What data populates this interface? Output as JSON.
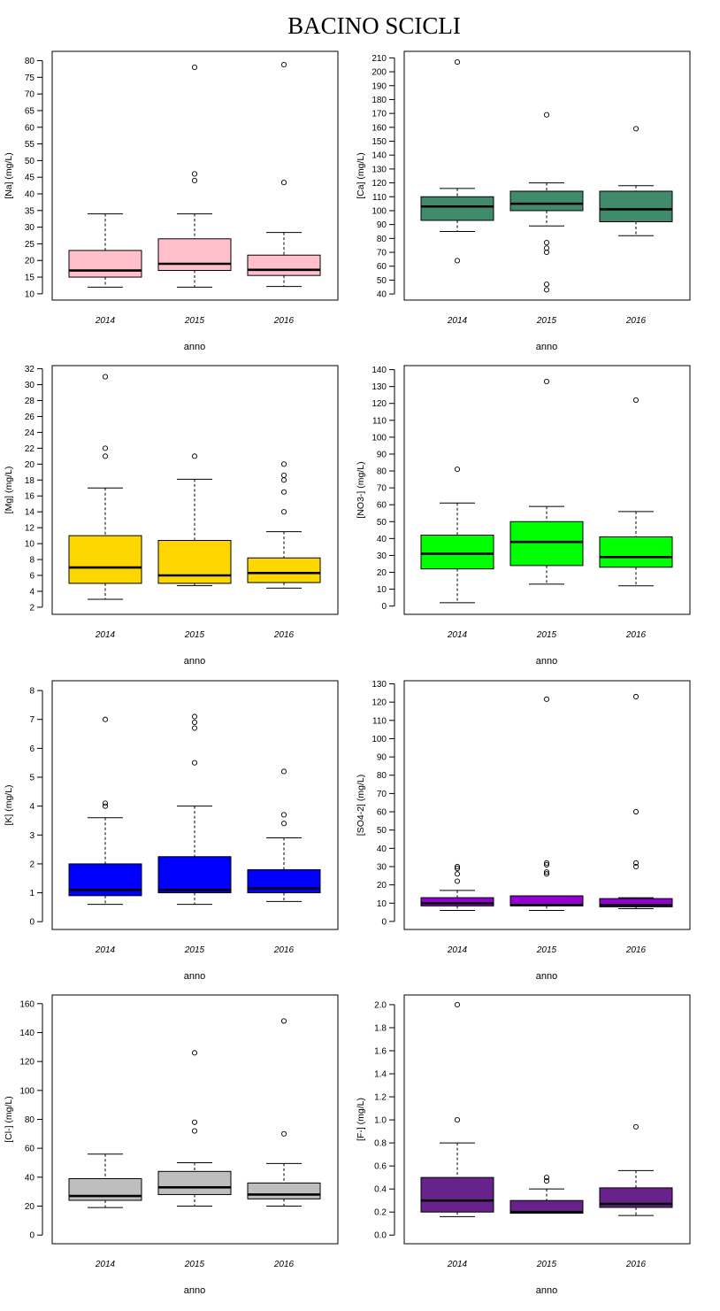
{
  "page": {
    "title": "BACINO SCICLI"
  },
  "chart_data": [
    {
      "type": "box",
      "ylabel": "[Na] (mg/L)",
      "xlabel": "anno",
      "ylim": [
        8.1,
        82.8
      ],
      "yticks": [
        10,
        15,
        20,
        25,
        30,
        35,
        40,
        45,
        50,
        55,
        60,
        65,
        70,
        75,
        80
      ],
      "color": "#ffc0cb",
      "groups": [
        {
          "year": "2014",
          "min": 12,
          "q1": 15,
          "median": 17,
          "q3": 23,
          "max": 34,
          "outliers": []
        },
        {
          "year": "2015",
          "min": 12,
          "q1": 17,
          "median": 19,
          "q3": 26.5,
          "max": 34,
          "outliers": [
            44,
            46,
            78
          ]
        },
        {
          "year": "2016",
          "min": 12.2,
          "q1": 15.5,
          "median": 17.2,
          "q3": 21.6,
          "max": 28.4,
          "outliers": [
            43.4,
            78.8
          ]
        }
      ]
    },
    {
      "type": "box",
      "ylabel": "[Ca] (mg/L)",
      "xlabel": "anno",
      "ylim": [
        35.6,
        214.7
      ],
      "yticks": [
        40,
        50,
        60,
        70,
        80,
        90,
        100,
        110,
        120,
        130,
        140,
        150,
        160,
        170,
        180,
        190,
        200,
        210
      ],
      "color": "#3f8b6b",
      "groups": [
        {
          "year": "2014",
          "min": 85,
          "q1": 93,
          "median": 103,
          "q3": 110,
          "max": 116,
          "outliers": [
            64,
            207
          ]
        },
        {
          "year": "2015",
          "min": 89,
          "q1": 100,
          "median": 105,
          "q3": 114,
          "max": 120,
          "outliers": [
            43,
            47,
            70,
            73,
            77,
            169
          ]
        },
        {
          "year": "2016",
          "min": 82,
          "q1": 92,
          "median": 101,
          "q3": 114,
          "max": 118,
          "outliers": [
            159
          ]
        }
      ]
    },
    {
      "type": "box",
      "ylabel": "[Mg] (mg/L)",
      "xlabel": "anno",
      "ylim": [
        1.1,
        32.4
      ],
      "yticks": [
        2,
        4,
        6,
        8,
        10,
        12,
        14,
        16,
        18,
        20,
        22,
        24,
        26,
        28,
        30,
        32
      ],
      "color": "#ffd700",
      "groups": [
        {
          "year": "2014",
          "min": 3,
          "q1": 5,
          "median": 7,
          "q3": 11,
          "max": 17,
          "outliers": [
            21,
            22,
            31
          ]
        },
        {
          "year": "2015",
          "min": 4.7,
          "q1": 5,
          "median": 6,
          "q3": 10.4,
          "max": 18.1,
          "outliers": [
            21
          ]
        },
        {
          "year": "2016",
          "min": 4.4,
          "q1": 5.1,
          "median": 6.3,
          "q3": 8.2,
          "max": 11.5,
          "outliers": [
            14,
            16.5,
            18,
            18.6,
            20
          ]
        }
      ]
    },
    {
      "type": "box",
      "ylabel": "[NO3-] (mg/L)",
      "xlabel": "anno",
      "ylim": [
        -4.9,
        142.4
      ],
      "yticks": [
        0,
        10,
        20,
        30,
        40,
        50,
        60,
        70,
        80,
        90,
        100,
        110,
        120,
        130,
        140
      ],
      "color": "#00ff00",
      "groups": [
        {
          "year": "2014",
          "min": 2,
          "q1": 22,
          "median": 31,
          "q3": 42,
          "max": 61,
          "outliers": [
            81
          ]
        },
        {
          "year": "2015",
          "min": 13,
          "q1": 24,
          "median": 38,
          "q3": 50,
          "max": 59,
          "outliers": [
            133
          ]
        },
        {
          "year": "2016",
          "min": 12,
          "q1": 23,
          "median": 29,
          "q3": 41,
          "max": 56,
          "outliers": [
            122
          ]
        }
      ]
    },
    {
      "type": "box",
      "ylabel": "[K] (mg/L)",
      "xlabel": "anno",
      "ylim": [
        -0.27,
        8.34
      ],
      "yticks": [
        0,
        1,
        2,
        3,
        4,
        5,
        6,
        7,
        8
      ],
      "color": "#0000ff",
      "groups": [
        {
          "year": "2014",
          "min": 0.6,
          "q1": 0.9,
          "median": 1.1,
          "q3": 2,
          "max": 3.6,
          "outliers": [
            4,
            4.1,
            7
          ]
        },
        {
          "year": "2015",
          "min": 0.6,
          "q1": 1,
          "median": 1.1,
          "q3": 2.25,
          "max": 4,
          "outliers": [
            5.5,
            6.7,
            6.9,
            7.1
          ]
        },
        {
          "year": "2016",
          "min": 0.7,
          "q1": 1,
          "median": 1.15,
          "q3": 1.8,
          "max": 2.9,
          "outliers": [
            3.4,
            3.7,
            5.2
          ]
        }
      ]
    },
    {
      "type": "box",
      "ylabel": "[SO4-2] (mg/L)",
      "xlabel": "anno",
      "ylim": [
        -4.4,
        131.7
      ],
      "yticks": [
        0,
        10,
        20,
        30,
        40,
        50,
        60,
        70,
        80,
        90,
        100,
        110,
        120,
        130
      ],
      "color": "#9400d3",
      "groups": [
        {
          "year": "2014",
          "min": 6,
          "q1": 8.5,
          "median": 10,
          "q3": 13,
          "max": 17,
          "outliers": [
            22,
            26,
            29,
            30
          ]
        },
        {
          "year": "2015",
          "min": 6,
          "q1": 8.5,
          "median": 9,
          "q3": 14,
          "max": 14,
          "outliers": [
            26,
            27,
            31,
            32,
            121.6
          ]
        },
        {
          "year": "2016",
          "min": 7,
          "q1": 8,
          "median": 9,
          "q3": 12.5,
          "max": 13,
          "outliers": [
            30,
            32,
            60,
            123
          ]
        }
      ]
    },
    {
      "type": "box",
      "ylabel": "[Cl-] (mg/L)",
      "xlabel": "anno",
      "ylim": [
        -6,
        166
      ],
      "yticks": [
        0,
        20,
        40,
        60,
        80,
        100,
        120,
        140,
        160
      ],
      "color": "#bebebe",
      "groups": [
        {
          "year": "2014",
          "min": 19,
          "q1": 24,
          "median": 27,
          "q3": 39,
          "max": 56,
          "outliers": []
        },
        {
          "year": "2015",
          "min": 20,
          "q1": 28,
          "median": 33,
          "q3": 44,
          "max": 50,
          "outliers": [
            72,
            78,
            126
          ]
        },
        {
          "year": "2016",
          "min": 20,
          "q1": 25,
          "median": 28,
          "q3": 36,
          "max": 49.5,
          "outliers": [
            70,
            148
          ]
        }
      ]
    },
    {
      "type": "box",
      "ylabel": "[F-] (mg/L)",
      "xlabel": "anno",
      "ylim": [
        -0.075,
        2.084
      ],
      "yticks": [
        "0.0",
        "0.2",
        "0.4",
        "0.6",
        "0.8",
        "1.0",
        "1.2",
        "1.4",
        "1.6",
        "1.8",
        "2.0"
      ],
      "color": "#68228b",
      "groups": [
        {
          "year": "2014",
          "min": 0.16,
          "q1": 0.2,
          "median": 0.3,
          "q3": 0.5,
          "max": 0.8,
          "outliers": [
            1,
            2
          ]
        },
        {
          "year": "2015",
          "min": 0.19,
          "q1": 0.19,
          "median": 0.2,
          "q3": 0.3,
          "max": 0.4,
          "outliers": [
            0.47,
            0.5
          ]
        },
        {
          "year": "2016",
          "min": 0.17,
          "q1": 0.24,
          "median": 0.27,
          "q3": 0.41,
          "max": 0.56,
          "outliers": [
            0.94
          ]
        }
      ]
    }
  ]
}
